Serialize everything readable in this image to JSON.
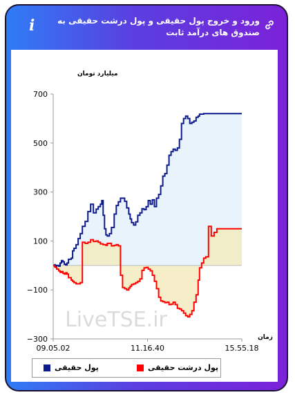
{
  "header": {
    "title": "ورود و خروج پول حقیقی و پول درشت حقیقی به صندوق های درآمد ثابت"
  },
  "watermark": "LiveTSE.ir",
  "legend": {
    "real_money": "پول حقیقی",
    "big_real_money": "پول درشت حقیقی"
  },
  "colors": {
    "real_money": "#0d1a8c",
    "big_real_money": "#ff0000",
    "real_fill": "#e8f3fb",
    "big_fill": "#f3ebc0"
  },
  "chart_data": {
    "type": "line",
    "ylabel": "میلیارد تومان",
    "xlabel": "زمان",
    "ylim": [
      -300,
      700
    ],
    "yticks": [
      -300,
      -100,
      100,
      300,
      500,
      700
    ],
    "xtick_labels": [
      "09.05.02",
      "11.16.40",
      "15.55.18"
    ],
    "series": [
      {
        "name": "پول حقیقی",
        "color": "#0d1a8c",
        "points": [
          [
            0,
            0
          ],
          [
            2,
            3
          ],
          [
            3,
            -5
          ],
          [
            5,
            0
          ],
          [
            8,
            -3
          ],
          [
            10,
            10
          ],
          [
            12,
            20
          ],
          [
            14,
            15
          ],
          [
            16,
            5
          ],
          [
            18,
            2
          ],
          [
            20,
            10
          ],
          [
            22,
            25
          ],
          [
            26,
            30
          ],
          [
            28,
            60
          ],
          [
            30,
            70
          ],
          [
            33,
            85
          ],
          [
            36,
            110
          ],
          [
            39,
            130
          ],
          [
            42,
            160
          ],
          [
            46,
            180
          ],
          [
            50,
            220
          ],
          [
            54,
            250
          ],
          [
            58,
            215
          ],
          [
            62,
            230
          ],
          [
            65,
            240
          ],
          [
            68,
            250
          ],
          [
            70,
            265
          ],
          [
            72,
            205
          ],
          [
            74,
            150
          ],
          [
            76,
            125
          ],
          [
            78,
            120
          ],
          [
            81,
            130
          ],
          [
            84,
            155
          ],
          [
            88,
            210
          ],
          [
            91,
            245
          ],
          [
            94,
            260
          ],
          [
            97,
            275
          ],
          [
            100,
            275
          ],
          [
            103,
            262
          ],
          [
            106,
            235
          ],
          [
            109,
            210
          ],
          [
            111,
            190
          ],
          [
            113,
            175
          ],
          [
            116,
            165
          ],
          [
            119,
            178
          ],
          [
            122,
            205
          ],
          [
            125,
            215
          ],
          [
            128,
            232
          ],
          [
            131,
            228
          ],
          [
            134,
            240
          ],
          [
            137,
            265
          ],
          [
            140,
            250
          ],
          [
            143,
            268
          ],
          [
            146,
            240
          ],
          [
            149,
            275
          ],
          [
            152,
            290
          ],
          [
            155,
            325
          ],
          [
            158,
            365
          ],
          [
            161,
            375
          ],
          [
            164,
            410
          ],
          [
            167,
            450
          ],
          [
            170,
            465
          ],
          [
            173,
            475
          ],
          [
            176,
            470
          ],
          [
            179,
            480
          ],
          [
            182,
            515
          ],
          [
            185,
            580
          ],
          [
            188,
            600
          ],
          [
            191,
            610
          ],
          [
            194,
            600
          ],
          [
            197,
            580
          ],
          [
            200,
            585
          ],
          [
            203,
            590
          ],
          [
            206,
            605
          ],
          [
            209,
            610
          ],
          [
            211,
            618
          ],
          [
            214,
            618
          ],
          [
            217,
            620
          ],
          [
            220,
            620
          ],
          [
            224,
            620
          ],
          [
            228,
            620
          ],
          [
            232,
            620
          ],
          [
            236,
            620
          ],
          [
            240,
            620
          ],
          [
            244,
            620
          ],
          [
            248,
            620
          ],
          [
            252,
            620
          ],
          [
            256,
            620
          ],
          [
            260,
            620
          ],
          [
            264,
            620
          ],
          [
            268,
            620
          ],
          [
            272,
            620
          ]
        ]
      },
      {
        "name": "پول درشت حقیقی",
        "color": "#ff0000",
        "points": [
          [
            0,
            0
          ],
          [
            2,
            -5
          ],
          [
            3,
            -8
          ],
          [
            5,
            -15
          ],
          [
            8,
            -22
          ],
          [
            10,
            -28
          ],
          [
            12,
            -25
          ],
          [
            14,
            -32
          ],
          [
            16,
            -35
          ],
          [
            18,
            -30
          ],
          [
            20,
            -35
          ],
          [
            22,
            -50
          ],
          [
            26,
            -60
          ],
          [
            28,
            -65
          ],
          [
            30,
            -70
          ],
          [
            33,
            -75
          ],
          [
            36,
            -75
          ],
          [
            39,
            -70
          ],
          [
            42,
            95
          ],
          [
            46,
            90
          ],
          [
            50,
            95
          ],
          [
            54,
            105
          ],
          [
            58,
            98
          ],
          [
            62,
            100
          ],
          [
            65,
            95
          ],
          [
            68,
            88
          ],
          [
            70,
            88
          ],
          [
            72,
            85
          ],
          [
            74,
            85
          ],
          [
            76,
            82
          ],
          [
            78,
            90
          ],
          [
            81,
            90
          ],
          [
            84,
            80
          ],
          [
            88,
            82
          ],
          [
            91,
            85
          ],
          [
            94,
            80
          ],
          [
            97,
            -40
          ],
          [
            100,
            -90
          ],
          [
            103,
            -95
          ],
          [
            106,
            -100
          ],
          [
            109,
            -92
          ],
          [
            111,
            -85
          ],
          [
            113,
            -78
          ],
          [
            116,
            -75
          ],
          [
            119,
            -70
          ],
          [
            122,
            -65
          ],
          [
            125,
            -55
          ],
          [
            128,
            -20
          ],
          [
            131,
            -10
          ],
          [
            134,
            -8
          ],
          [
            137,
            -15
          ],
          [
            140,
            -22
          ],
          [
            143,
            -40
          ],
          [
            146,
            -65
          ],
          [
            149,
            -95
          ],
          [
            152,
            -130
          ],
          [
            155,
            -145
          ],
          [
            158,
            -148
          ],
          [
            161,
            -152
          ],
          [
            164,
            -150
          ],
          [
            167,
            -160
          ],
          [
            170,
            -158
          ],
          [
            173,
            -150
          ],
          [
            176,
            -160
          ],
          [
            179,
            -175
          ],
          [
            182,
            -178
          ],
          [
            185,
            -185
          ],
          [
            188,
            -195
          ],
          [
            191,
            -205
          ],
          [
            194,
            -210
          ],
          [
            197,
            -200
          ],
          [
            200,
            -185
          ],
          [
            203,
            -150
          ],
          [
            206,
            -120
          ],
          [
            209,
            -60
          ],
          [
            211,
            -10
          ],
          [
            214,
            10
          ],
          [
            217,
            30
          ],
          [
            220,
            35
          ],
          [
            224,
            160
          ],
          [
            228,
            120
          ],
          [
            232,
            135
          ],
          [
            236,
            150
          ],
          [
            240,
            150
          ],
          [
            244,
            150
          ],
          [
            248,
            150
          ],
          [
            252,
            150
          ],
          [
            256,
            150
          ],
          [
            260,
            150
          ],
          [
            264,
            150
          ],
          [
            268,
            150
          ],
          [
            272,
            150
          ]
        ]
      }
    ]
  }
}
